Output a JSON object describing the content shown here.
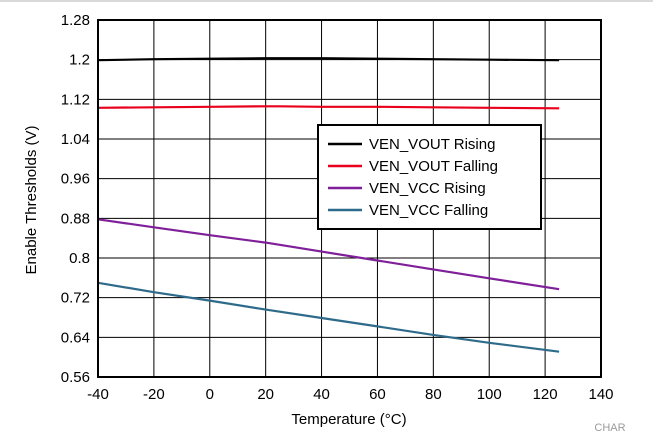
{
  "chart_data": {
    "type": "line",
    "xlabel": "Temperature (°C)",
    "ylabel": "Enable Thresholds (V)",
    "xlim": [
      -40,
      140
    ],
    "ylim": [
      0.56,
      1.28
    ],
    "xticks": [
      -40,
      -20,
      0,
      20,
      40,
      60,
      80,
      100,
      120,
      140
    ],
    "yticks": [
      0.56,
      0.64,
      0.72,
      0.8,
      0.88,
      0.96,
      1.04,
      1.12,
      1.2,
      1.28
    ],
    "grid": true,
    "legend_position": "center-right",
    "series": [
      {
        "name": "VEN_VOUT Rising",
        "color": "#000000",
        "x": [
          -40,
          -20,
          0,
          20,
          25,
          40,
          60,
          80,
          100,
          125
        ],
        "y": [
          1.199,
          1.201,
          1.202,
          1.203,
          1.203,
          1.203,
          1.202,
          1.201,
          1.2,
          1.199
        ]
      },
      {
        "name": "VEN_VOUT Falling",
        "color": "#e8001c",
        "x": [
          -40,
          -20,
          0,
          20,
          25,
          40,
          60,
          80,
          100,
          125
        ],
        "y": [
          1.103,
          1.104,
          1.105,
          1.106,
          1.106,
          1.105,
          1.105,
          1.104,
          1.103,
          1.102
        ]
      },
      {
        "name": "VEN_VCC Rising",
        "color": "#7f1f99",
        "x": [
          -40,
          -20,
          0,
          20,
          40,
          60,
          80,
          100,
          125
        ],
        "y": [
          0.878,
          0.862,
          0.846,
          0.831,
          0.813,
          0.795,
          0.777,
          0.759,
          0.737
        ]
      },
      {
        "name": "VEN_VCC Falling",
        "color": "#2e6b8a",
        "x": [
          -40,
          -20,
          0,
          20,
          40,
          60,
          80,
          100,
          125
        ],
        "y": [
          0.75,
          0.731,
          0.714,
          0.696,
          0.679,
          0.662,
          0.645,
          0.629,
          0.611
        ]
      }
    ],
    "corner_label": "CHAR"
  }
}
